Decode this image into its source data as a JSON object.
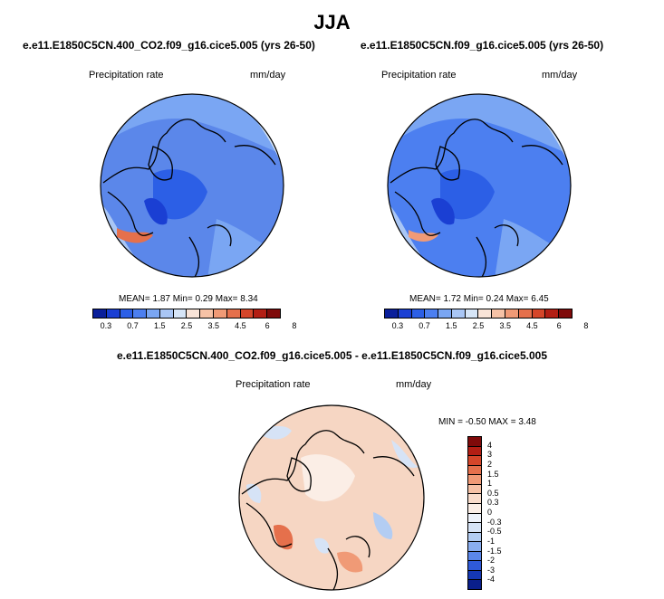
{
  "title": "JJA",
  "panels": [
    {
      "case": "e.e11.E1850C5CN.400_CO2.f09_g16.cice5.005 (yrs 26-50)",
      "variable": "Precipitation rate",
      "units": "mm/day",
      "mean_label": "MEAN=",
      "mean": "1.87",
      "min_label": "Min=",
      "min": "0.29",
      "max_label": "Max=",
      "max": "8.34"
    },
    {
      "case": "e.e11.E1850C5CN.f09_g16.cice5.005 (yrs 26-50)",
      "variable": "Precipitation rate",
      "units": "mm/day",
      "mean_label": "MEAN=",
      "mean": "1.72",
      "min_label": "Min=",
      "min": "0.24",
      "max_label": "Max=",
      "max": "6.45"
    }
  ],
  "diff_panel": {
    "case": "e.e11.E1850C5CN.400_CO2.f09_g16.cice5.005 - e.e11.E1850C5CN.f09_g16.cice5.005",
    "variable": "Precipitation rate",
    "units": "mm/day",
    "minmax_text": "MIN =  -0.50 MAX =   3.48"
  },
  "colorbar_abs": {
    "labels": [
      "0.3",
      "0.7",
      "1.5",
      "2.5",
      "3.5",
      "4.5",
      "6",
      "8"
    ],
    "colors": [
      "#0a1f9b",
      "#1a3fd3",
      "#2c5fe6",
      "#4c7ff0",
      "#7aa6f3",
      "#a9c6f5",
      "#d6e5f7",
      "#f9e4d8",
      "#f6c2a6",
      "#f09a76",
      "#e5704c",
      "#d5462a",
      "#b31e14",
      "#7f0a0a"
    ]
  },
  "colorbar_diff": {
    "labels": [
      "4",
      "3",
      "2",
      "1.5",
      "1",
      "0.5",
      "0.3",
      "0",
      "-0.3",
      "-0.5",
      "-1",
      "-1.5",
      "-2",
      "-3",
      "-4"
    ],
    "colors": [
      "#7f0a0a",
      "#b31e14",
      "#d5462a",
      "#e5704c",
      "#f09a76",
      "#f6c2a6",
      "#f9dccb",
      "#fbeee6",
      "#eef2fa",
      "#d6e3f6",
      "#b3cdf3",
      "#8aaef0",
      "#5b87ea",
      "#2f5ad8",
      "#1538b3",
      "#0a1f8b"
    ]
  }
}
